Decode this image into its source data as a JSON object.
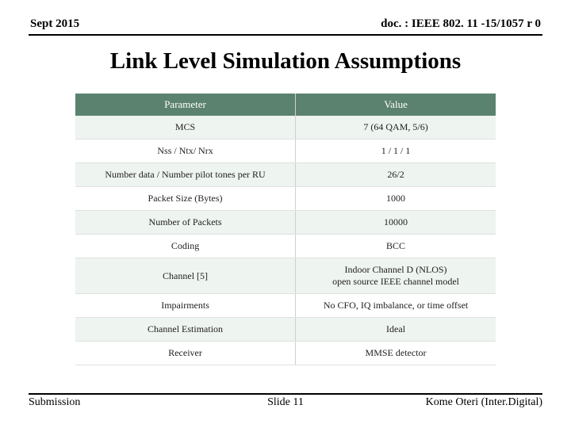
{
  "header": {
    "left": "Sept 2015",
    "right": "doc. : IEEE 802. 11 -15/1057 r 0"
  },
  "title": "Link Level Simulation Assumptions",
  "table": {
    "header_bg": "#5b826e",
    "header_fg": "#ffffff",
    "row_odd_bg": "#eef4ef",
    "row_even_bg": "#ffffff",
    "columns": [
      "Parameter",
      "Value"
    ],
    "rows": [
      [
        "MCS",
        "7 (64 QAM, 5/6)"
      ],
      [
        "Nss / Ntx/ Nrx",
        "1 / 1 / 1"
      ],
      [
        "Number data / Number pilot tones per RU",
        "26/2"
      ],
      [
        "Packet Size (Bytes)",
        "1000"
      ],
      [
        "Number of Packets",
        "10000"
      ],
      [
        "Coding",
        "BCC"
      ],
      [
        "Channel [5]",
        "Indoor Channel D (NLOS)\nopen source IEEE channel model"
      ],
      [
        "Impairments",
        "No CFO, IQ imbalance, or time offset"
      ],
      [
        "Channel Estimation",
        "Ideal"
      ],
      [
        "Receiver",
        "MMSE detector"
      ]
    ]
  },
  "footer": {
    "left": "Submission",
    "center": "Slide 11",
    "right": "Kome Oteri (Inter.Digital)"
  }
}
